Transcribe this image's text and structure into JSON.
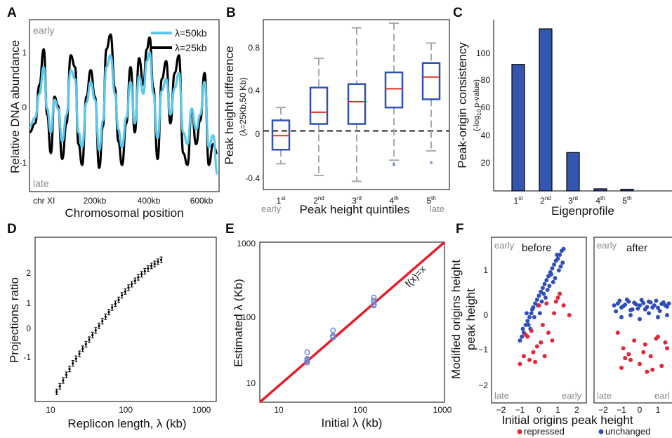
{
  "panels": {
    "A": {
      "label": "A",
      "ylabel": "Relative DNA abundance",
      "xlabel": "Chromosomal position",
      "corner_top": "early",
      "corner_bottom": "late",
      "xticks": [
        "chr XI",
        "200kb",
        "400kb",
        "600kb"
      ],
      "yticks": [
        "1",
        "0",
        "-1"
      ],
      "legend": [
        "λ=50kb",
        "λ=25kb"
      ]
    },
    "B": {
      "label": "B",
      "ylabel": "Peak height difference",
      "ylabel_sub": "(λ=25Kb,50 Kb)",
      "xlabel": "Peak height quintiles",
      "corner_left": "early",
      "corner_right": "late",
      "xticks": [
        [
          "1",
          "st"
        ],
        [
          "2",
          "nd"
        ],
        [
          "3",
          "rd"
        ],
        [
          "4",
          "th"
        ],
        [
          "5",
          "th"
        ]
      ],
      "yticks": [
        "0.8",
        "0.4",
        "0",
        "-0.4"
      ]
    },
    "C": {
      "label": "C",
      "ylabel": "Peak-origin consistency",
      "ylabel_sub_a": "(-log",
      "ylabel_sub_b": "10",
      "ylabel_sub_c": " p-value)",
      "xlabel": "Eigenprofile",
      "xticks": [
        [
          "1",
          "st"
        ],
        [
          "2",
          "nd"
        ],
        [
          "3",
          "rd"
        ],
        [
          "4",
          "th"
        ],
        [
          "5",
          "th"
        ]
      ],
      "yticks": [
        "100",
        "80",
        "60",
        "40",
        "20"
      ]
    },
    "D": {
      "label": "D",
      "ylabel": "Projections ratio",
      "xlabel": "Replicon length, λ (kb)",
      "xticks": [
        "10",
        "100",
        "1000"
      ],
      "yticks": [
        "2",
        "1",
        "0",
        "-1"
      ]
    },
    "E": {
      "label": "E",
      "ylabel": "Estimated  λ (Kb)",
      "xlabel": "Initial λ (kb)",
      "annotation": "f(x)=x",
      "xticks": [
        "10",
        "100",
        "1000"
      ],
      "yticks": [
        "1000",
        "100",
        "10"
      ]
    },
    "F": {
      "label": "F",
      "ylabel_line1": "Modified origins height",
      "ylabel_line2": "peak height",
      "xlabel": "Initial origins peak height",
      "left_title": "before",
      "right_title": "after",
      "corner_early": "early",
      "corner_late": "late",
      "corner_early_br": "early",
      "corner_early_br_trunc": "earl",
      "legend": [
        "repressed",
        "unchanged"
      ],
      "xticks": [
        "−2",
        "−1",
        "0",
        "1",
        "2"
      ],
      "xticks_right": [
        "−2",
        "−1",
        "0",
        "1",
        "2"
      ],
      "yticks": [
        "1",
        "0",
        "−1",
        "−2"
      ]
    }
  },
  "colors": {
    "cyan": "#5bc8ec",
    "black": "#000000",
    "box_blue": "#2f52b5",
    "bar_blue": "#3556b0",
    "median_red": "#e3302a",
    "whisker_grey": "#a9a9a9",
    "scatter_blue": "#2f4fb7",
    "scatter_red": "#e0283a",
    "line_red": "#e3202a"
  },
  "chart_data": [
    {
      "panel": "A",
      "type": "line",
      "xlabel": "Chromosomal position",
      "ylabel": "Relative DNA abundance",
      "xlim": [
        0,
        666
      ],
      "ylim": [
        -1.35,
        1.55
      ],
      "series": [
        {
          "name": "λ=50kb",
          "x": [
            0,
            20,
            35,
            50,
            62,
            75,
            88,
            100,
            115,
            130,
            145,
            160,
            172,
            185,
            200,
            215,
            230,
            245,
            258,
            270,
            285,
            300,
            312,
            325,
            340,
            355,
            370,
            385,
            400,
            412,
            422,
            435,
            450,
            465,
            480,
            495,
            510,
            525,
            540,
            555,
            570,
            585,
            600,
            615,
            630,
            645,
            660
          ],
          "y": [
            -0.25,
            -0.1,
            0.3,
            0.75,
            0.05,
            -0.35,
            0.2,
            0.05,
            -0.5,
            -0.05,
            0.7,
            0.55,
            -0.35,
            -0.6,
            0.15,
            0.5,
            0.2,
            -0.65,
            -0.15,
            0.75,
            0.95,
            0.3,
            -0.3,
            -0.6,
            -0.1,
            0.5,
            -0.2,
            0.6,
            0.3,
            0.85,
            1.0,
            0.3,
            -0.45,
            0.35,
            0.55,
            -0.05,
            0.4,
            0.65,
            -0.35,
            -0.55,
            0.05,
            -0.3,
            -0.05,
            0.5,
            -0.6,
            -0.4,
            -1.05
          ]
        },
        {
          "name": "λ=25kb",
          "x": [
            0,
            20,
            35,
            50,
            62,
            75,
            88,
            100,
            115,
            130,
            145,
            160,
            172,
            185,
            200,
            215,
            230,
            245,
            258,
            270,
            285,
            300,
            312,
            325,
            340,
            355,
            370,
            385,
            400,
            412,
            422,
            435,
            450,
            465,
            480,
            495,
            510,
            525,
            540,
            555,
            570,
            585,
            600,
            615,
            630,
            645,
            660
          ],
          "y": [
            -0.35,
            -0.2,
            0.45,
            1.05,
            -0.05,
            -0.7,
            0.25,
            0.1,
            -0.8,
            -0.2,
            0.95,
            0.75,
            -0.55,
            -0.9,
            0.25,
            0.7,
            0.25,
            -0.95,
            -0.25,
            1.05,
            1.3,
            0.4,
            -0.5,
            -0.9,
            -0.2,
            0.75,
            -0.35,
            0.9,
            0.45,
            1.05,
            1.25,
            0.4,
            -0.8,
            0.55,
            0.85,
            -0.2,
            0.65,
            0.95,
            -0.7,
            -0.9,
            0.05,
            -0.55,
            -0.15,
            0.65,
            -0.9,
            -0.55,
            -0.7
          ]
        }
      ]
    },
    {
      "panel": "B",
      "type": "box",
      "categories": [
        "1st",
        "2nd",
        "3rd",
        "4th",
        "5th"
      ],
      "xlabel": "Peak height quintiles",
      "ylabel": "Peak height difference",
      "ylim": [
        -0.5,
        0.95
      ],
      "reference_line": 0,
      "boxes": [
        {
          "whisker_low": -0.28,
          "q1": -0.16,
          "median": -0.04,
          "q3": 0.09,
          "whisker_high": 0.2,
          "outliers": []
        },
        {
          "whisker_low": -0.38,
          "q1": 0.06,
          "median": 0.16,
          "q3": 0.37,
          "whisker_high": 0.62,
          "outliers": []
        },
        {
          "whisker_low": -0.43,
          "q1": 0.06,
          "median": 0.25,
          "q3": 0.4,
          "whisker_high": 0.88,
          "outliers": []
        },
        {
          "whisker_low": -0.25,
          "q1": 0.2,
          "median": 0.36,
          "q3": 0.5,
          "whisker_high": 0.92,
          "outliers": [
            -0.29,
            -0.28
          ]
        },
        {
          "whisker_low": -0.17,
          "q1": 0.27,
          "median": 0.46,
          "q3": 0.58,
          "whisker_high": 0.75,
          "outliers": [
            -0.27
          ]
        }
      ]
    },
    {
      "panel": "C",
      "type": "bar",
      "categories": [
        "1st",
        "2nd",
        "3rd",
        "4th",
        "5th"
      ],
      "values": [
        89,
        114,
        27,
        1.5,
        1.2
      ],
      "xlabel": "Eigenprofile",
      "ylabel": "Peak-origin consistency",
      "ylim": [
        0,
        117
      ]
    },
    {
      "panel": "D",
      "type": "scatter",
      "xscale": "log",
      "xlim": [
        7,
        1300
      ],
      "ylim": [
        -1.8,
        2.5
      ],
      "xlabel": "Replicon length, λ (kb)",
      "ylabel": "Projections ratio",
      "x": [
        13,
        14.3,
        15.7,
        17.2,
        18.9,
        20.8,
        22.8,
        25.1,
        27.6,
        30.3,
        33.3,
        36.6,
        40.2,
        44.2,
        48.6,
        53.4,
        58.7,
        64.5,
        70.9,
        77.9,
        85.6,
        94.1,
        103.4,
        113.6,
        124.9,
        137.2,
        150.8,
        165.7,
        182.1,
        200.2,
        220,
        241.8,
        265.7
      ],
      "y": [
        -1.55,
        -1.4,
        -1.25,
        -1.1,
        -0.95,
        -0.8,
        -0.68,
        -0.55,
        -0.42,
        -0.3,
        -0.18,
        -0.06,
        0.06,
        0.18,
        0.3,
        0.42,
        0.54,
        0.66,
        0.76,
        0.86,
        0.98,
        1.08,
        1.18,
        1.27,
        1.36,
        1.45,
        1.53,
        1.61,
        1.68,
        1.75,
        1.8,
        1.86,
        1.91
      ]
    },
    {
      "panel": "E",
      "type": "scatter",
      "xscale": "log",
      "yscale": "log",
      "xlim": [
        7,
        1000
      ],
      "ylim": [
        7,
        1000
      ],
      "xlabel": "Initial λ (kb)",
      "ylabel": "Estimated  λ (Kb)",
      "reference_line": "f(x)=x",
      "x": [
        25,
        25,
        25,
        25,
        25,
        50,
        50,
        50,
        50,
        150,
        150,
        150,
        150,
        150
      ],
      "y": [
        33,
        27,
        25,
        24,
        26,
        65,
        55,
        52,
        54,
        180,
        165,
        145,
        140,
        155
      ]
    },
    {
      "panel": "F",
      "type": "scatter",
      "xlabel": "Initial origins peak height",
      "ylabel": "Modified origins height peak height",
      "xlim": [
        -2.5,
        2.5
      ],
      "ylim": [
        -2.5,
        1.75
      ],
      "series": [
        {
          "name": "unchanged",
          "facet": "before",
          "x": [
            -1.0,
            -0.9,
            -0.8,
            -0.7,
            -0.6,
            -0.5,
            -0.4,
            -0.3,
            -0.2,
            -0.1,
            0.0,
            0.1,
            0.2,
            0.3,
            0.4,
            0.5,
            0.6,
            0.7,
            0.8,
            0.9,
            1.0,
            1.1,
            1.2,
            1.3,
            -0.85,
            -0.55,
            -0.35,
            -0.05,
            0.25,
            0.55,
            0.85,
            1.15,
            -0.65,
            -0.25,
            0.15,
            0.45,
            0.75,
            1.05,
            1.25,
            -0.45,
            0.05,
            0.35,
            0.65,
            0.95
          ],
          "y": [
            -0.9,
            -0.8,
            -0.7,
            -0.5,
            -0.4,
            -0.3,
            -0.2,
            -0.05,
            0.05,
            0.15,
            0.25,
            0.35,
            0.45,
            0.55,
            0.65,
            0.75,
            0.85,
            0.95,
            1.05,
            1.15,
            1.2,
            1.3,
            1.4,
            1.45,
            -0.6,
            -0.5,
            -0.1,
            0.0,
            0.3,
            0.5,
            0.7,
            1.0,
            -0.2,
            -0.3,
            0.1,
            0.4,
            0.6,
            0.9,
            1.1,
            -0.6,
            -0.2,
            0.2,
            0.8,
            1.3
          ]
        },
        {
          "name": "repressed",
          "facet": "before",
          "x": [
            -1.0,
            -0.8,
            -0.6,
            -0.5,
            -0.3,
            -0.1,
            0.1,
            0.3,
            0.5,
            0.7,
            0.9,
            1.1,
            1.3,
            1.6,
            -0.7,
            -0.4,
            0.0,
            0.4,
            0.8,
            1.0,
            0.2,
            -0.2
          ],
          "y": [
            -1.5,
            -1.3,
            -0.8,
            -1.4,
            -1.2,
            -1.05,
            -0.95,
            -1.3,
            -0.7,
            -0.9,
            0.1,
            0.3,
            0.0,
            -0.25,
            -0.75,
            -0.65,
            0.0,
            0.05,
            -0.2,
            0.2,
            -0.5,
            -1.45
          ]
        },
        {
          "name": "unchanged",
          "facet": "after",
          "x": [
            -1.4,
            -1.2,
            -1.0,
            -0.8,
            -0.6,
            -0.4,
            -0.2,
            0.0,
            0.2,
            0.4,
            0.6,
            0.8,
            1.0,
            1.2,
            1.4,
            1.6,
            -1.3,
            -1.1,
            -0.9,
            -0.7,
            -0.5,
            -0.3,
            -0.1,
            0.1,
            0.3,
            0.5,
            0.7,
            0.9,
            1.1,
            1.3,
            1.5,
            -1.0,
            -0.5,
            0.0,
            0.5,
            1.0,
            1.5
          ],
          "y": [
            0.0,
            0.05,
            -0.05,
            0.02,
            0.1,
            -0.1,
            0.03,
            0.0,
            0.06,
            -0.04,
            0.08,
            0.0,
            -0.06,
            0.04,
            0.0,
            0.05,
            -0.15,
            0.12,
            -0.02,
            0.15,
            -0.12,
            0.07,
            -0.08,
            0.14,
            -0.1,
            0.1,
            -0.05,
            0.12,
            -0.14,
            0.08,
            -0.03,
            -0.3,
            -0.25,
            -0.35,
            -0.2,
            -0.3,
            -0.25
          ]
        },
        {
          "name": "repressed",
          "facet": "after",
          "x": [
            -1.2,
            -0.9,
            -0.6,
            -0.3,
            0.0,
            0.3,
            0.6,
            0.9,
            1.2,
            1.5,
            -1.0,
            -0.5,
            0.2,
            0.7,
            1.0,
            1.4,
            -0.8,
            0.4
          ],
          "y": [
            -0.7,
            -1.1,
            -1.25,
            -0.9,
            -1.5,
            -1.0,
            -1.3,
            -0.85,
            -1.55,
            -1.1,
            -1.6,
            -1.4,
            -1.2,
            -1.65,
            -0.8,
            -0.95,
            -1.35,
            -1.7
          ]
        }
      ]
    }
  ]
}
